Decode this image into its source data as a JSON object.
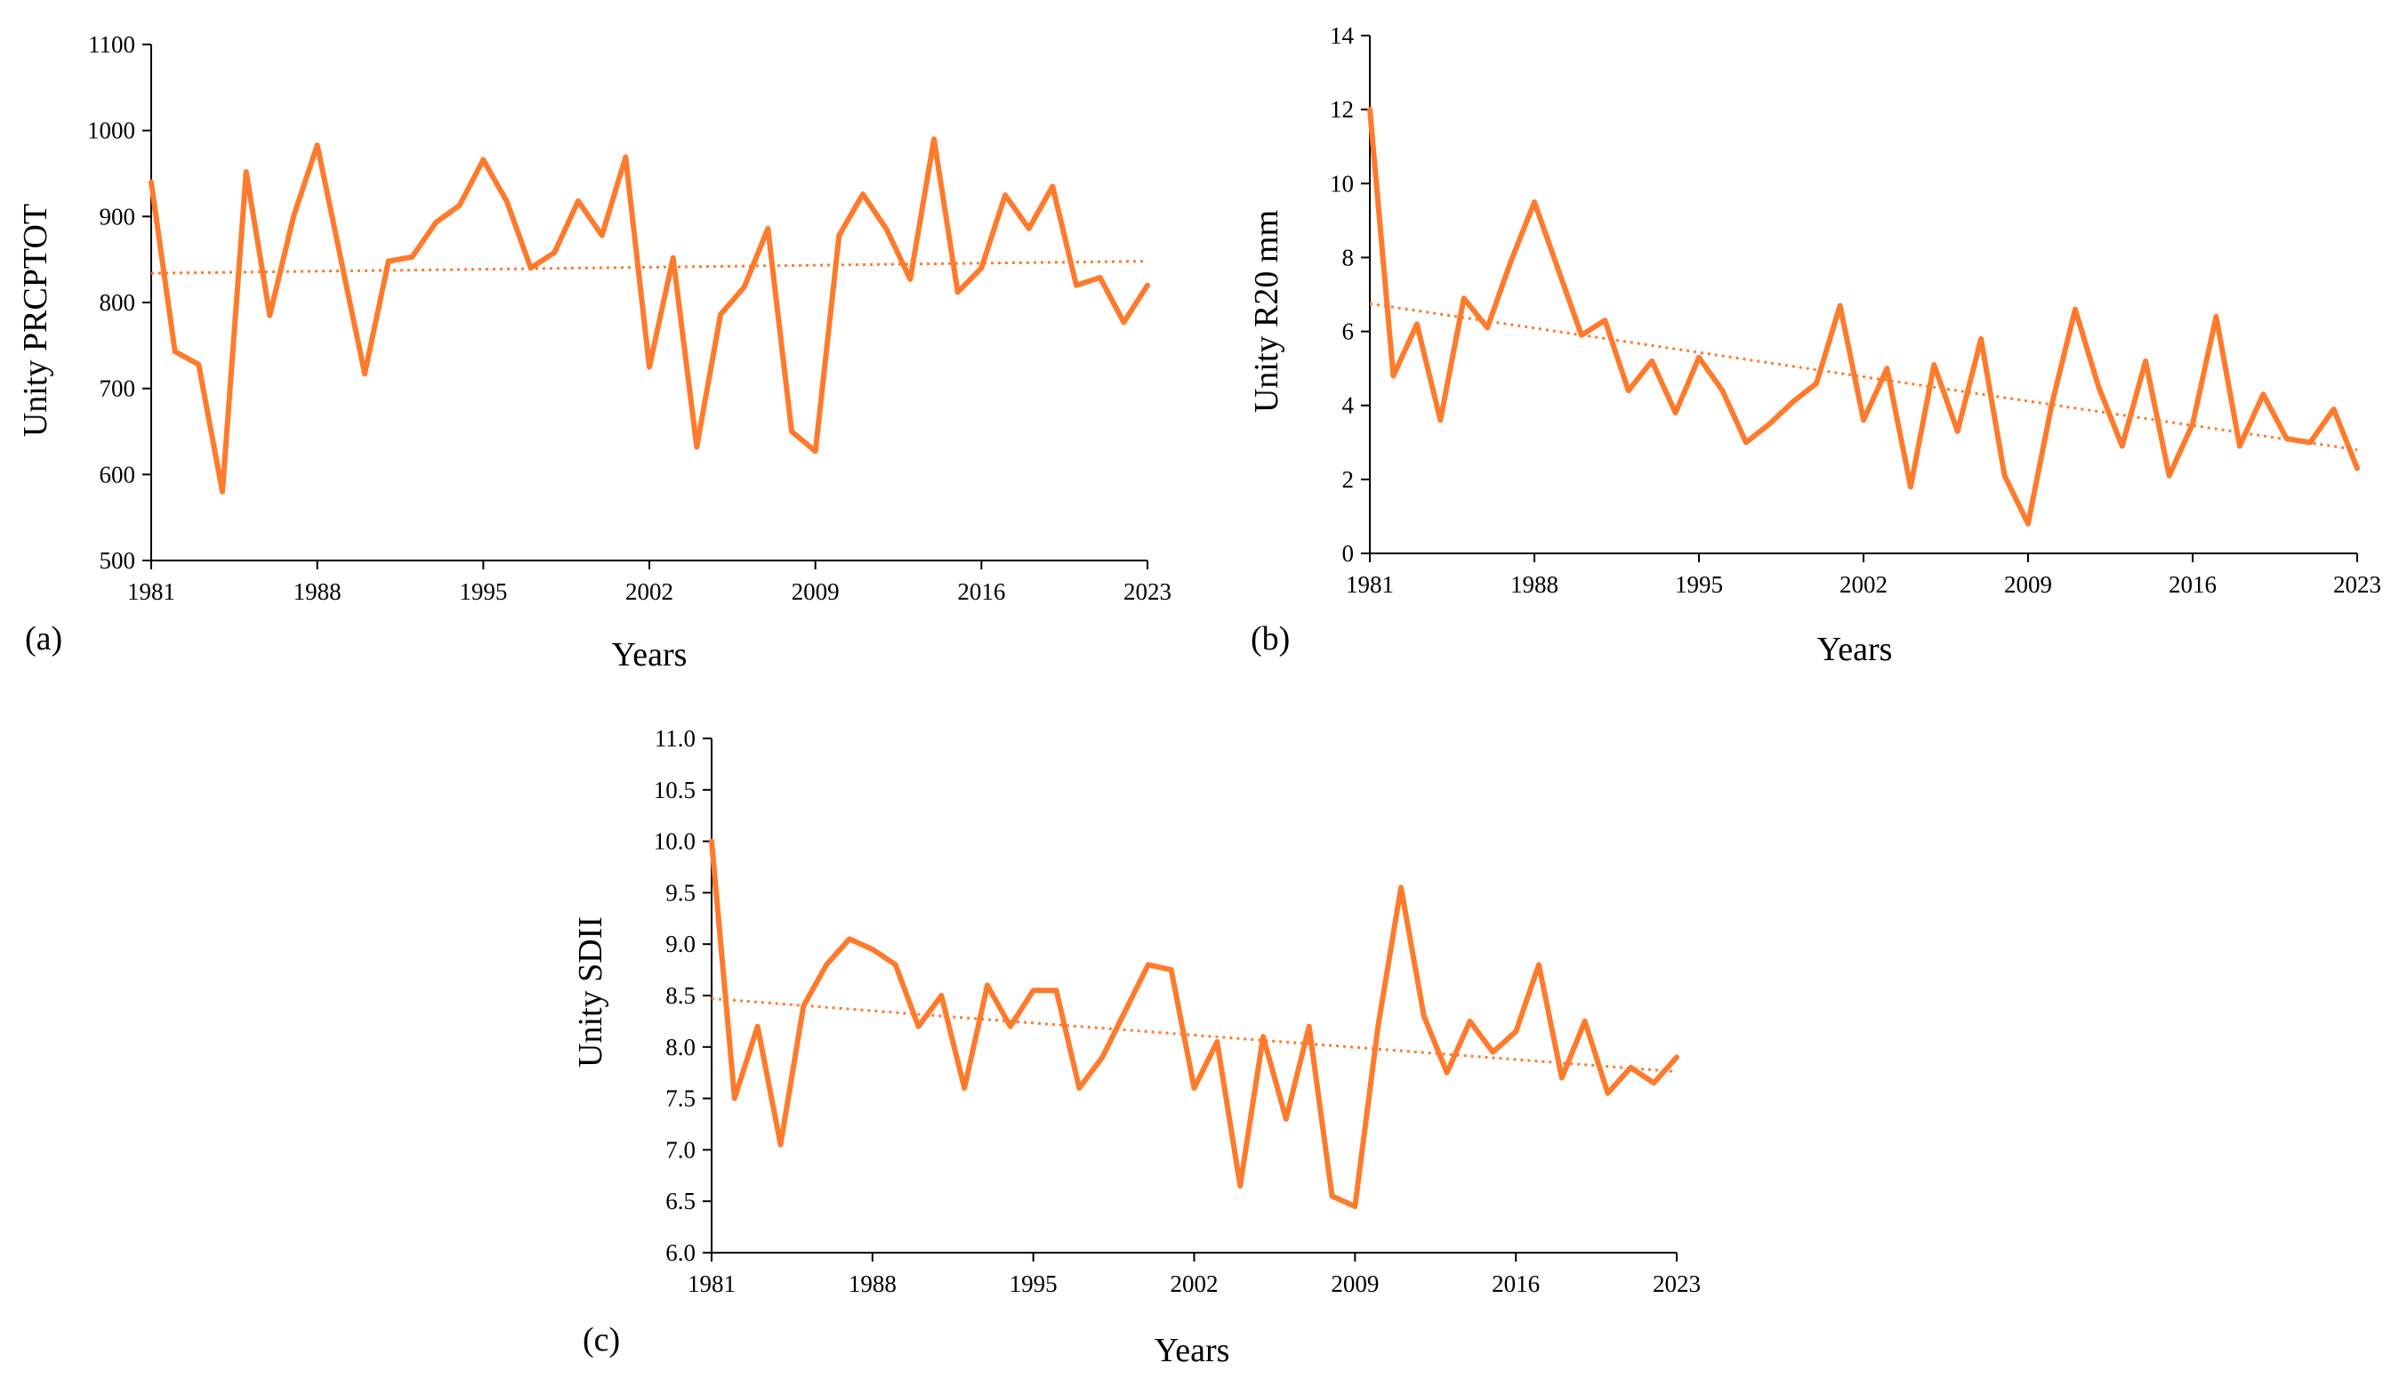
{
  "colors": {
    "series": "#FF7A2B",
    "trend": "#FF7A2B",
    "axis": "#000000"
  },
  "chart_data": [
    {
      "type": "line",
      "panel": "(a)",
      "ylabel": "Unity PRCPTOT",
      "xlabel": "Years",
      "ylim": [
        500,
        1100
      ],
      "yticks": [
        500,
        600,
        700,
        800,
        900,
        1000,
        1100
      ],
      "ytick_labels": [
        "500",
        "600",
        "700",
        "800",
        "900",
        "1000",
        "1100"
      ],
      "xlim": [
        1981,
        2023
      ],
      "xticks": [
        1981,
        1988,
        1995,
        2002,
        2009,
        2016,
        2023
      ],
      "xtick_labels": [
        "1981",
        "1988",
        "1995",
        "2002",
        "2009",
        "2016",
        "2023"
      ],
      "trend": {
        "type": "linear",
        "start": [
          1981,
          834
        ],
        "end": [
          2023,
          848
        ]
      },
      "series": [
        {
          "name": "PRCPTOT",
          "x": [
            1981,
            1982,
            1983,
            1984,
            1985,
            1986,
            1987,
            1988,
            1989,
            1990,
            1991,
            1992,
            1993,
            1994,
            1995,
            1996,
            1997,
            1998,
            1999,
            2000,
            2001,
            2002,
            2003,
            2004,
            2005,
            2006,
            2007,
            2008,
            2009,
            2010,
            2011,
            2012,
            2013,
            2014,
            2015,
            2016,
            2017,
            2018,
            2019,
            2020,
            2021,
            2022,
            2023
          ],
          "values": [
            940,
            743,
            728,
            580,
            952,
            785,
            900,
            983,
            850,
            717,
            848,
            853,
            893,
            913,
            966,
            917,
            840,
            858,
            918,
            878,
            969,
            725,
            852,
            632,
            786,
            818,
            886,
            650,
            627,
            878,
            926,
            885,
            827,
            990,
            812,
            840,
            925,
            886,
            935,
            820,
            829,
            777,
            820
          ]
        }
      ]
    },
    {
      "type": "line",
      "panel": "(b)",
      "ylabel": "Unity R20 mm",
      "xlabel": "Years",
      "ylim": [
        0,
        14
      ],
      "yticks": [
        0,
        2,
        4,
        6,
        8,
        10,
        12,
        14
      ],
      "ytick_labels": [
        "0",
        "2",
        "4",
        "6",
        "8",
        "10",
        "12",
        "14"
      ],
      "xlim": [
        1981,
        2023
      ],
      "xticks": [
        1981,
        1988,
        1995,
        2002,
        2009,
        2016,
        2023
      ],
      "xtick_labels": [
        "1981",
        "1988",
        "1995",
        "2002",
        "2009",
        "2016",
        "2023"
      ],
      "trend": {
        "type": "linear",
        "start": [
          1981,
          6.75
        ],
        "end": [
          2023,
          2.8
        ]
      },
      "series": [
        {
          "name": "R20 mm",
          "x": [
            1981,
            1982,
            1983,
            1984,
            1985,
            1986,
            1987,
            1988,
            1989,
            1990,
            1991,
            1992,
            1993,
            1994,
            1995,
            1996,
            1997,
            1998,
            1999,
            2000,
            2001,
            2002,
            2003,
            2004,
            2005,
            2006,
            2007,
            2008,
            2009,
            2010,
            2011,
            2012,
            2013,
            2014,
            2015,
            2016,
            2017,
            2018,
            2019,
            2020,
            2021,
            2022,
            2023
          ],
          "values": [
            12.0,
            4.8,
            6.2,
            3.6,
            6.9,
            6.1,
            7.9,
            9.5,
            7.7,
            5.9,
            6.3,
            4.4,
            5.2,
            3.8,
            5.3,
            4.4,
            3.0,
            3.5,
            4.1,
            4.6,
            6.7,
            3.6,
            5.0,
            1.8,
            5.1,
            3.3,
            5.8,
            2.1,
            0.8,
            4.0,
            6.6,
            4.5,
            2.9,
            5.2,
            2.1,
            3.5,
            6.4,
            2.9,
            4.3,
            3.1,
            3.0,
            3.9,
            2.3
          ]
        }
      ]
    },
    {
      "type": "line",
      "panel": "(c)",
      "ylabel": "Unity  SDII",
      "xlabel": "Years",
      "ylim": [
        6.0,
        11.0
      ],
      "yticks": [
        6.0,
        6.5,
        7.0,
        7.5,
        8.0,
        8.5,
        9.0,
        9.5,
        10.0,
        10.5,
        11.0
      ],
      "ytick_labels": [
        "6.0",
        "6.5",
        "7.0",
        "7.5",
        "8.0",
        "8.5",
        "9.0",
        "9.5",
        "10.0",
        "10.5",
        "11.0"
      ],
      "xlim": [
        1981,
        2023
      ],
      "xticks": [
        1981,
        1988,
        1995,
        2002,
        2009,
        2016,
        2023
      ],
      "xtick_labels": [
        "1981",
        "1988",
        "1995",
        "2002",
        "2009",
        "2016",
        "2023"
      ],
      "trend": {
        "type": "linear",
        "start": [
          1981,
          8.47
        ],
        "end": [
          2023,
          7.76
        ]
      },
      "series": [
        {
          "name": "SDII",
          "x": [
            1981,
            1982,
            1983,
            1984,
            1985,
            1986,
            1987,
            1988,
            1989,
            1990,
            1991,
            1992,
            1993,
            1994,
            1995,
            1996,
            1997,
            1998,
            1999,
            2000,
            2001,
            2002,
            2003,
            2004,
            2005,
            2006,
            2007,
            2008,
            2009,
            2010,
            2011,
            2012,
            2013,
            2014,
            2015,
            2016,
            2017,
            2018,
            2019,
            2020,
            2021,
            2022,
            2023
          ],
          "values": [
            10.0,
            7.5,
            8.2,
            7.05,
            8.4,
            8.8,
            9.05,
            8.95,
            8.8,
            8.2,
            8.5,
            7.6,
            8.6,
            8.2,
            8.55,
            8.55,
            7.6,
            7.9,
            8.35,
            8.8,
            8.75,
            7.6,
            8.05,
            6.65,
            8.1,
            7.3,
            8.2,
            6.55,
            6.45,
            8.2,
            9.55,
            8.3,
            7.75,
            8.25,
            7.95,
            8.15,
            8.8,
            7.7,
            8.25,
            7.55,
            7.8,
            7.65,
            7.9
          ]
        }
      ]
    }
  ]
}
